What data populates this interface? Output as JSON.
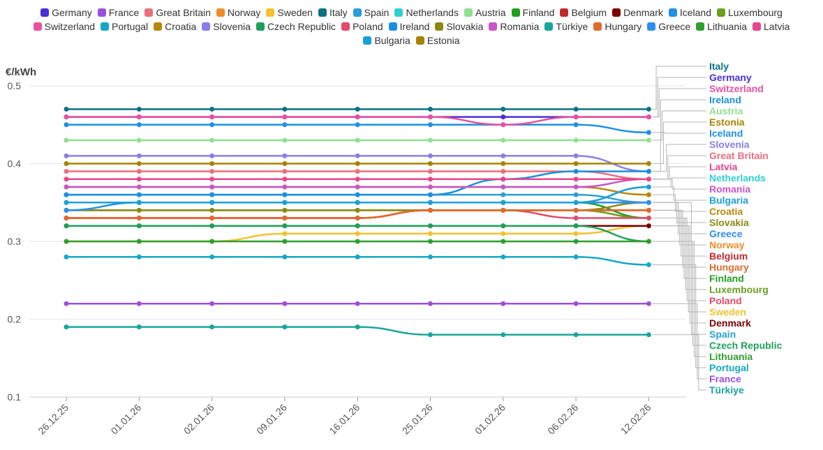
{
  "chart_data": {
    "type": "line",
    "ylabel": "€/kWh",
    "xlabel": "",
    "ylim": [
      0.1,
      0.5
    ],
    "yticks": [
      "0.1",
      "0.2",
      "0.3",
      "0.4",
      "0.5"
    ],
    "categories": [
      "26.12.25",
      "01.01.26",
      "02.01.26",
      "09.01.26",
      "16.01.26",
      "25.01.26",
      "01.02.26",
      "06.02.26",
      "12.02.26"
    ],
    "legend_position": "top",
    "series": [
      {
        "name": "Germany",
        "color": "#4a2fd6",
        "values": [
          0.46,
          0.46,
          0.46,
          0.46,
          0.46,
          0.46,
          0.46,
          0.46,
          0.46
        ]
      },
      {
        "name": "France",
        "color": "#9a50dc",
        "values": [
          0.22,
          0.22,
          0.22,
          0.22,
          0.22,
          0.22,
          0.22,
          0.22,
          0.22
        ]
      },
      {
        "name": "Great Britain",
        "color": "#ec6f7e",
        "values": [
          0.39,
          0.39,
          0.39,
          0.39,
          0.39,
          0.39,
          0.39,
          0.39,
          0.38
        ]
      },
      {
        "name": "Norway",
        "color": "#f28c28",
        "values": [
          0.33,
          0.33,
          0.33,
          0.33,
          0.33,
          0.34,
          0.34,
          0.34,
          0.34
        ]
      },
      {
        "name": "Sweden",
        "color": "#f2c12e",
        "values": [
          0.3,
          0.3,
          0.3,
          0.31,
          0.31,
          0.31,
          0.31,
          0.31,
          0.32
        ]
      },
      {
        "name": "Italy",
        "color": "#0b7285",
        "values": [
          0.47,
          0.47,
          0.47,
          0.47,
          0.47,
          0.47,
          0.47,
          0.47,
          0.47
        ]
      },
      {
        "name": "Spain",
        "color": "#2a9fd6",
        "values": [
          0.36,
          0.36,
          0.36,
          0.36,
          0.36,
          0.36,
          0.36,
          0.36,
          0.35
        ]
      },
      {
        "name": "Netherlands",
        "color": "#2fd0d0",
        "values": [
          0.34,
          0.35,
          0.35,
          0.35,
          0.35,
          0.35,
          0.35,
          0.35,
          0.37
        ]
      },
      {
        "name": "Austria",
        "color": "#8fe08f",
        "values": [
          0.43,
          0.43,
          0.43,
          0.43,
          0.43,
          0.43,
          0.43,
          0.43,
          0.43
        ]
      },
      {
        "name": "Finland",
        "color": "#1f9e1f",
        "values": [
          0.35,
          0.35,
          0.35,
          0.35,
          0.35,
          0.35,
          0.35,
          0.35,
          0.33
        ]
      },
      {
        "name": "Belgium",
        "color": "#c0282d",
        "values": [
          0.33,
          0.33,
          0.33,
          0.33,
          0.33,
          0.34,
          0.34,
          0.34,
          0.34
        ]
      },
      {
        "name": "Denmark",
        "color": "#7a0000",
        "values": [
          0.32,
          0.32,
          0.32,
          0.32,
          0.32,
          0.32,
          0.32,
          0.32,
          0.32
        ]
      },
      {
        "name": "Iceland",
        "color": "#1e90e6",
        "values": [
          0.45,
          0.45,
          0.45,
          0.45,
          0.45,
          0.45,
          0.45,
          0.45,
          0.44
        ]
      },
      {
        "name": "Luxembourg",
        "color": "#6a9e1f",
        "values": [
          0.34,
          0.34,
          0.34,
          0.34,
          0.34,
          0.34,
          0.34,
          0.34,
          0.33
        ]
      },
      {
        "name": "Switzerland",
        "color": "#e8519e",
        "values": [
          0.46,
          0.46,
          0.46,
          0.46,
          0.46,
          0.46,
          0.45,
          0.46,
          0.46
        ]
      },
      {
        "name": "Portugal",
        "color": "#14a8c4",
        "values": [
          0.28,
          0.28,
          0.28,
          0.28,
          0.28,
          0.28,
          0.28,
          0.28,
          0.27
        ]
      },
      {
        "name": "Croatia",
        "color": "#b8860b",
        "values": [
          0.37,
          0.37,
          0.37,
          0.37,
          0.37,
          0.37,
          0.37,
          0.37,
          0.36
        ]
      },
      {
        "name": "Slovenia",
        "color": "#8a7fe8",
        "values": [
          0.41,
          0.41,
          0.41,
          0.41,
          0.41,
          0.41,
          0.41,
          0.41,
          0.39
        ]
      },
      {
        "name": "Czech Republic",
        "color": "#1fa05a",
        "values": [
          0.32,
          0.32,
          0.32,
          0.32,
          0.32,
          0.32,
          0.32,
          0.32,
          0.3
        ]
      },
      {
        "name": "Poland",
        "color": "#e24a6a",
        "values": [
          0.33,
          0.33,
          0.33,
          0.33,
          0.33,
          0.34,
          0.34,
          0.33,
          0.33
        ]
      },
      {
        "name": "Ireland",
        "color": "#1a8fe0",
        "values": [
          0.36,
          0.36,
          0.36,
          0.36,
          0.36,
          0.36,
          0.38,
          0.39,
          0.39
        ]
      },
      {
        "name": "Slovakia",
        "color": "#8a8a12",
        "values": [
          0.34,
          0.34,
          0.34,
          0.34,
          0.34,
          0.34,
          0.34,
          0.34,
          0.35
        ]
      },
      {
        "name": "Romania",
        "color": "#c955c9",
        "values": [
          0.37,
          0.37,
          0.37,
          0.37,
          0.37,
          0.37,
          0.37,
          0.37,
          0.38
        ]
      },
      {
        "name": "Türkiye",
        "color": "#1aa59a",
        "values": [
          0.19,
          0.19,
          0.19,
          0.19,
          0.19,
          0.18,
          0.18,
          0.18,
          0.18
        ]
      },
      {
        "name": "Hungary",
        "color": "#e06a2c",
        "values": [
          0.33,
          0.33,
          0.33,
          0.33,
          0.33,
          0.34,
          0.34,
          0.34,
          0.34
        ]
      },
      {
        "name": "Greece",
        "color": "#2d8ef0",
        "values": [
          0.34,
          0.35,
          0.35,
          0.35,
          0.35,
          0.35,
          0.35,
          0.35,
          0.35
        ]
      },
      {
        "name": "Lithuania",
        "color": "#2e9e2e",
        "values": [
          0.3,
          0.3,
          0.3,
          0.3,
          0.3,
          0.3,
          0.3,
          0.3,
          0.3
        ]
      },
      {
        "name": "Latvia",
        "color": "#e8458e",
        "values": [
          0.38,
          0.38,
          0.38,
          0.38,
          0.38,
          0.38,
          0.38,
          0.38,
          0.38
        ]
      },
      {
        "name": "Bulgaria",
        "color": "#1aa0d8",
        "values": [
          0.35,
          0.35,
          0.35,
          0.35,
          0.35,
          0.35,
          0.35,
          0.35,
          0.37
        ]
      },
      {
        "name": "Estonia",
        "color": "#a68400",
        "values": [
          0.4,
          0.4,
          0.4,
          0.4,
          0.4,
          0.4,
          0.4,
          0.4,
          0.4
        ]
      }
    ],
    "legend_rows": [
      [
        "Germany",
        "France",
        "Great Britain",
        "Norway",
        "Sweden",
        "Italy",
        "Spain",
        "Netherlands",
        "Austria",
        "Finland",
        "Belgium",
        "Denmark",
        "Iceland",
        "Luxembourg"
      ],
      [
        "Switzerland",
        "Portugal",
        "Croatia",
        "Slovenia",
        "Czech Republic",
        "Poland",
        "Ireland",
        "Slovakia",
        "Romania",
        "Türkiye",
        "Hungary",
        "Greece",
        "Lithuania",
        "Latvia"
      ],
      [
        "Bulgaria",
        "Estonia"
      ]
    ],
    "end_labels": [
      "Italy",
      "Germany",
      "Switzerland",
      "Ireland",
      "Austria",
      "Estonia",
      "Iceland",
      "Slovenia",
      "Great Britain",
      "Latvia",
      "Netherlands",
      "Romania",
      "Bulgaria",
      "Croatia",
      "Slovakia",
      "Greece",
      "Norway",
      "Belgium",
      "Hungary",
      "Finland",
      "Luxembourg",
      "Poland",
      "Sweden",
      "Denmark",
      "Spain",
      "Czech Republic",
      "Lithuania",
      "Portugal",
      "France",
      "Türkiye"
    ]
  }
}
